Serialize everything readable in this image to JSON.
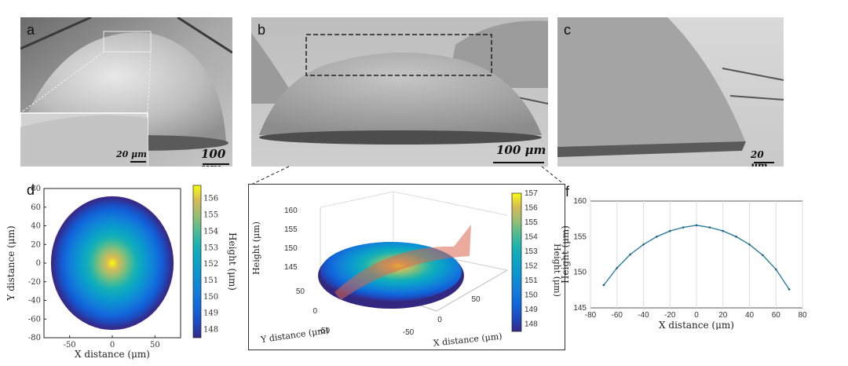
{
  "panels": {
    "a": {
      "label": "a",
      "scale": "100 μm",
      "inset_scale": "20 μm"
    },
    "b": {
      "label": "b",
      "scale": "100 μm"
    },
    "c": {
      "label": "c",
      "scale": "20 μm"
    },
    "d": {
      "label": "d"
    },
    "e": {
      "label": "e"
    },
    "f": {
      "label": "f"
    }
  },
  "chart_data": [
    {
      "id": "d",
      "type": "heatmap",
      "description_shape": "circular_footprint",
      "xlabel": "X distance (μm)",
      "ylabel": "Y distance (μm)",
      "xlim": [
        -80,
        80
      ],
      "ylim": [
        -80,
        80
      ],
      "xticks": [
        -50,
        0,
        50
      ],
      "yticks": [
        -80,
        -60,
        -40,
        -20,
        0,
        20,
        40,
        60,
        80
      ],
      "radius": 70,
      "colorbar": {
        "label": "Height (μm)",
        "ticks": [
          148,
          149,
          150,
          151,
          152,
          153,
          154,
          155,
          156
        ],
        "min": 147.5,
        "max": 156.8
      }
    },
    {
      "id": "e",
      "type": "heatmap",
      "view": "3d_surface",
      "xlabel": "X distance (μm)",
      "ylabel": "Y distance (μm)",
      "zlabel": "Height (μm)",
      "xticks": [
        -50,
        0,
        50
      ],
      "yticks": [
        -50,
        0,
        50
      ],
      "zticks": [
        145,
        150,
        155,
        160
      ],
      "colorbar": {
        "ticks": [
          148,
          149,
          150,
          151,
          152,
          153,
          154,
          155,
          156,
          157
        ],
        "min": 147.5,
        "max": 157
      }
    },
    {
      "id": "f",
      "type": "line",
      "xlabel": "X distance (μm)",
      "ylabel": "Height (μm)",
      "xlim": [
        -80,
        80
      ],
      "ylim": [
        145,
        160
      ],
      "xticks": [
        -80,
        -60,
        -40,
        -20,
        0,
        20,
        40,
        60,
        80
      ],
      "yticks": [
        145,
        150,
        155,
        160
      ],
      "grid": "vertical",
      "series": [
        {
          "name": "profile",
          "x": [
            -70,
            -60,
            -50,
            -40,
            -30,
            -20,
            -10,
            0,
            10,
            20,
            30,
            40,
            50,
            60,
            70
          ],
          "y": [
            148.2,
            150.6,
            152.5,
            153.9,
            155.0,
            155.8,
            156.3,
            156.6,
            156.3,
            155.8,
            155.0,
            153.9,
            152.4,
            150.4,
            147.6
          ]
        }
      ]
    }
  ]
}
